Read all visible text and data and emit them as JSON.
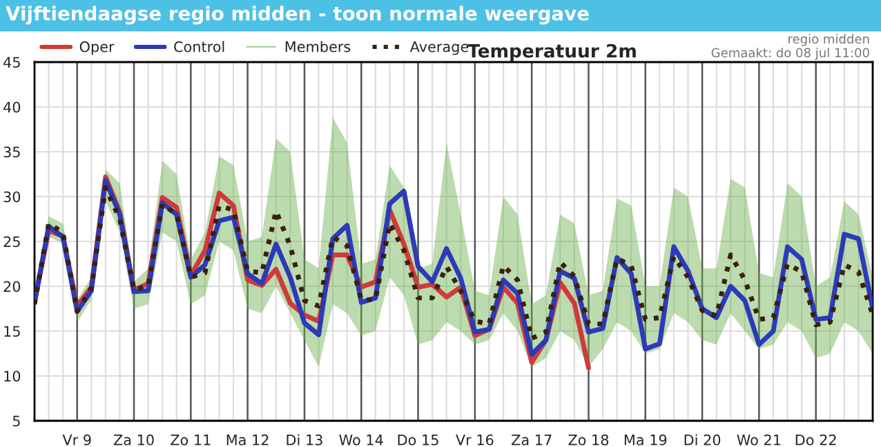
{
  "chart_data": {
    "type": "line",
    "title": "Temperatuur 2m",
    "subtitle": "Vijftiendaagse regio midden - toon normale weergave",
    "annotations": [
      "regio midden",
      "Gemaakt: do 08 jul 11:00"
    ],
    "categories": [
      null,
      null,
      null,
      "Vr 9",
      null,
      null,
      null,
      "Za 10",
      null,
      null,
      null,
      "Zo 11",
      null,
      null,
      null,
      "Ma 12",
      null,
      null,
      null,
      "Di 13",
      null,
      null,
      null,
      "Wo 14",
      null,
      null,
      null,
      "Do 15",
      null,
      null,
      null,
      "Vr 16",
      null,
      null,
      null,
      "Za 17",
      null,
      null,
      null,
      "Zo 18",
      null,
      null,
      null,
      "Ma 19",
      null,
      null,
      null,
      "Di 20",
      null,
      null,
      null,
      "Wo 21",
      null,
      null,
      null,
      "Do 22",
      null,
      null,
      null,
      null
    ],
    "series": [
      {
        "name": "Oper",
        "color": "#d03a3a",
        "values": [
          18.2,
          26.2,
          25.6,
          17.8,
          19.9,
          32.2,
          28.3,
          19.6,
          20.3,
          29.9,
          28.8,
          21.2,
          24.0,
          30.4,
          29.0,
          20.7,
          20.1,
          21.9,
          18.1,
          16.8,
          16.1,
          23.5,
          23.5,
          19.9,
          20.5,
          28.5,
          24.7,
          19.9,
          20.2,
          18.8,
          19.9,
          14.5,
          15.2,
          19.9,
          18.1,
          11.5,
          14.0,
          20.4,
          18.1,
          10.9,
          null,
          null,
          null,
          null,
          null,
          null,
          null,
          null,
          null,
          null,
          null,
          null,
          null,
          null,
          null,
          null,
          null,
          null,
          null,
          null
        ]
      },
      {
        "name": "Control",
        "color": "#2d3ab8",
        "values": [
          18.2,
          26.7,
          25.5,
          17.2,
          19.5,
          31.8,
          28.0,
          19.4,
          19.5,
          29.3,
          28.0,
          21.0,
          22.4,
          27.3,
          27.7,
          21.4,
          20.3,
          24.7,
          21.0,
          15.9,
          14.6,
          25.3,
          26.8,
          18.2,
          18.7,
          29.2,
          30.6,
          22.2,
          20.5,
          24.2,
          20.9,
          14.9,
          15.2,
          20.7,
          19.2,
          12.4,
          14.0,
          21.7,
          20.9,
          14.9,
          15.3,
          23.2,
          21.4,
          13.0,
          13.6,
          24.4,
          21.7,
          17.5,
          16.5,
          20.0,
          18.4,
          13.5,
          15.0,
          24.4,
          23.0,
          16.3,
          16.5,
          25.8,
          25.3,
          17.5
        ]
      },
      {
        "name": "Members",
        "color": "#6ab04c",
        "values": [
          null,
          null,
          null,
          null,
          null,
          null,
          null,
          null,
          null,
          null,
          null,
          null,
          null,
          null,
          null,
          null,
          null,
          null,
          null,
          null,
          null,
          null,
          null,
          null,
          null,
          null,
          null,
          null,
          null,
          null,
          null,
          null,
          null,
          null,
          null,
          null,
          null,
          null,
          null,
          null,
          null,
          null,
          null,
          null,
          null,
          null,
          null,
          null,
          null,
          null,
          null,
          null,
          null,
          null,
          null,
          null,
          null,
          null,
          null,
          null
        ],
        "lower": [
          18,
          25.5,
          24.8,
          16,
          18.5,
          29.5,
          26,
          17.5,
          18,
          26,
          25,
          18,
          19,
          25,
          24,
          17.5,
          17,
          20,
          17,
          14,
          11,
          18,
          17,
          14.5,
          15,
          21,
          19,
          13.5,
          14,
          16,
          15,
          13.5,
          14,
          17,
          15,
          11,
          12,
          15,
          14,
          11,
          13,
          16,
          15,
          12.5,
          13,
          17,
          16,
          14,
          13.5,
          17,
          15,
          13,
          13.5,
          16,
          15,
          12,
          12.5,
          16,
          15,
          12.5
        ],
        "upper": [
          18.5,
          27.8,
          27,
          18.5,
          21,
          33,
          31.5,
          20.5,
          22,
          34,
          32.5,
          23,
          26,
          34.5,
          33.5,
          25,
          25.5,
          36.5,
          35,
          23,
          22,
          38.8,
          36,
          22.5,
          23,
          33.5,
          31,
          22,
          22.5,
          36,
          28,
          19.5,
          19,
          30,
          28,
          18,
          19,
          28,
          27,
          19,
          19.5,
          29.8,
          29,
          20,
          20,
          31,
          30,
          22,
          22,
          32,
          31,
          21.5,
          21,
          31.5,
          30,
          20,
          21,
          29.5,
          28,
          21
        ]
      },
      {
        "name": "Average",
        "color": "#3b1f0f",
        "line_style": "dotted",
        "values": [
          18.0,
          27.0,
          26.0,
          17.2,
          19.8,
          31.0,
          27.5,
          19.6,
          20.0,
          29.2,
          28.0,
          21.0,
          21.5,
          29.0,
          28.5,
          21.7,
          21.5,
          28.4,
          24.5,
          18.4,
          17.8,
          25.5,
          24.5,
          18.5,
          18.5,
          27.0,
          24.0,
          18.7,
          18.7,
          22.2,
          19.5,
          16.1,
          15.8,
          22.3,
          20.7,
          14.2,
          14.9,
          22.7,
          21.1,
          15.8,
          15.8,
          23.1,
          22.3,
          16.3,
          16.5,
          23.3,
          21.0,
          17.3,
          16.7,
          23.5,
          20.7,
          16.3,
          16.5,
          22.5,
          21.6,
          15.7,
          16.0,
          22.4,
          21.6,
          16.8
        ]
      }
    ],
    "ylim": [
      5,
      45
    ],
    "yticks": [
      5,
      10,
      15,
      20,
      25,
      30,
      35,
      40,
      45
    ],
    "grid": true,
    "legend": "top left"
  }
}
